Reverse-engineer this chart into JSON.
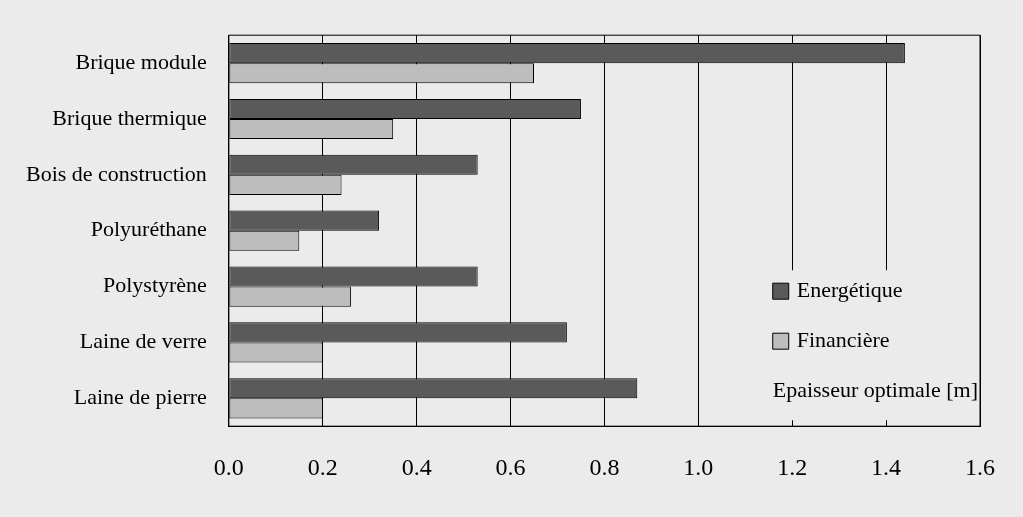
{
  "chart_data": {
    "type": "bar",
    "orientation": "horizontal",
    "xlabel": "Epaisseur optimale [m]",
    "categories": [
      "Brique module",
      "Brique thermique",
      "Bois de construction",
      "Polyuréthane",
      "Polystyrène",
      "Laine de verre",
      "Laine de pierre"
    ],
    "series": [
      {
        "name": "Energétique",
        "color": "#5a5a5a",
        "values": [
          1.44,
          0.75,
          0.53,
          0.32,
          0.53,
          0.72,
          0.87
        ]
      },
      {
        "name": "Financière",
        "color": "#bdbdbd",
        "values": [
          0.65,
          0.35,
          0.24,
          0.15,
          0.26,
          0.2,
          0.2
        ]
      }
    ],
    "xlim": [
      0,
      1.6
    ],
    "xticks": [
      {
        "value": 0,
        "label": "0.0"
      },
      0.2,
      0.4,
      0.6,
      0.8,
      {
        "value": 1,
        "label": "1.0"
      },
      1.2,
      1.4,
      1.6
    ],
    "grid": "x",
    "legend": "bottom right"
  }
}
